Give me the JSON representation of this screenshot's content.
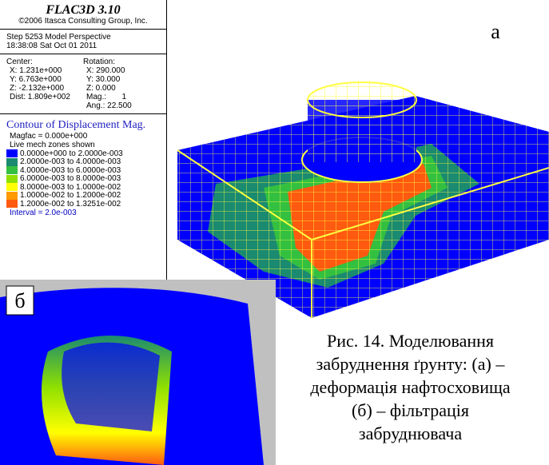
{
  "legend": {
    "title": "FLAC3D 3.10",
    "copyright": "©2006 Itasca Consulting Group, Inc.",
    "step": "Step 5253  Model Perspective",
    "time": "18:38:08 Sat Oct 01 2011",
    "center": {
      "heading": "Center:",
      "lines": [
        "X: 1.231e+000",
        "Y: 6.763e+000",
        "Z: -2.132e+000",
        "Dist: 1.809e+002"
      ]
    },
    "rotation": {
      "heading": "Rotation:",
      "lines": [
        "X: 290.000",
        "Y: 30.000",
        "Z: 0.000",
        "Mag.:       1",
        "Ang.: 22.500"
      ]
    },
    "contour_title": "Contour of Displacement Mag.",
    "magfac": "Magfac = 0.000e+000",
    "zones": "Live mech zones shown",
    "ranges": [
      {
        "label": "0.0000e+000 to 2.0000e-003",
        "color": "#0000ff"
      },
      {
        "label": "2.0000e-003 to 4.0000e-003",
        "color": "#1a8a70"
      },
      {
        "label": "4.0000e-003 to 6.0000e-003",
        "color": "#33c040"
      },
      {
        "label": "6.0000e-003 to 8.0000e-003",
        "color": "#8fe000"
      },
      {
        "label": "8.0000e-003 to 1.0000e-002",
        "color": "#ffff00"
      },
      {
        "label": "1.0000e-002 to 1.2000e-002",
        "color": "#ff9a00"
      },
      {
        "label": "1.2000e-002 to 1.3251e-002",
        "color": "#ff5a10"
      }
    ],
    "interval": "Interval =  2.0e-003"
  },
  "panel_a": {
    "label": "а"
  },
  "panel_b": {
    "label": "б"
  },
  "caption": [
    "Рис. 14. Моделювання",
    "забруднення ґрунту: (а) –",
    "деформація нафтосховища",
    "(б) – фільтрація",
    "забруднювача"
  ]
}
